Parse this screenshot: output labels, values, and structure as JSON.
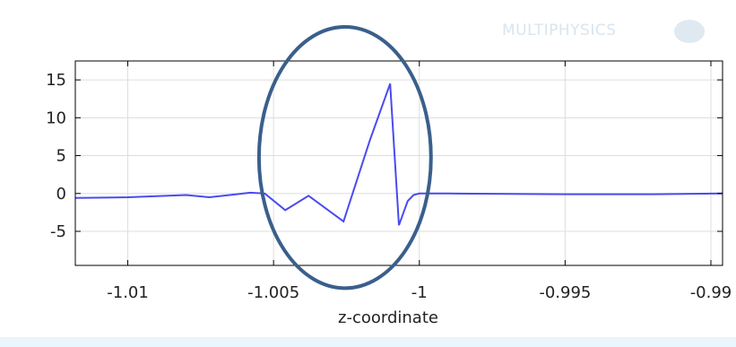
{
  "watermark": {
    "text": "MULTIPHYSICS",
    "colors": {
      "text": "#d9e5ef"
    }
  },
  "colors": {
    "series": "#4a4af0",
    "grid": "#dddddd",
    "axis": "#000000",
    "ellipse": "#3a5f8c",
    "bottom_band": "#eaf5fc"
  },
  "chart_data": {
    "type": "line",
    "title": "",
    "xlabel": "z-coordinate",
    "ylabel": "",
    "xlim": [
      -1.0118,
      -0.9896
    ],
    "ylim": [
      -9.5,
      17.5
    ],
    "xticks": [
      -1.01,
      -1.005,
      -1,
      -0.995,
      -0.99
    ],
    "xtick_labels": [
      "-1.01",
      "-1.005",
      "-1",
      "-0.995",
      "-0.99"
    ],
    "yticks": [
      15,
      10,
      5,
      0,
      -5
    ],
    "ytick_labels": [
      "15",
      "10",
      "5",
      "0",
      "-5"
    ],
    "grid": true,
    "legend": "none",
    "series": [
      {
        "x": [
          -1.0118,
          -1.01,
          -1.008,
          -1.0072,
          -1.0065,
          -1.0058,
          -1.0053,
          -1.0046,
          -1.0038,
          -1.0026,
          -1.0017,
          -1.001,
          -1.0007,
          -1.0004,
          -1.0002,
          -1.0,
          -0.999,
          -0.995,
          -0.992,
          -0.9896
        ],
        "y": [
          -0.6,
          -0.5,
          -0.2,
          -0.5,
          -0.2,
          0.1,
          0.0,
          -2.2,
          -0.3,
          -3.7,
          7.0,
          14.5,
          -4.2,
          -1.0,
          -0.2,
          0.0,
          0.0,
          -0.1,
          -0.1,
          0.0
        ]
      }
    ],
    "annotations": [
      {
        "shape": "ellipse",
        "x_range": [
          -1.0055,
          -0.9996
        ],
        "y_range": [
          -12.5,
          22.0
        ]
      }
    ]
  }
}
